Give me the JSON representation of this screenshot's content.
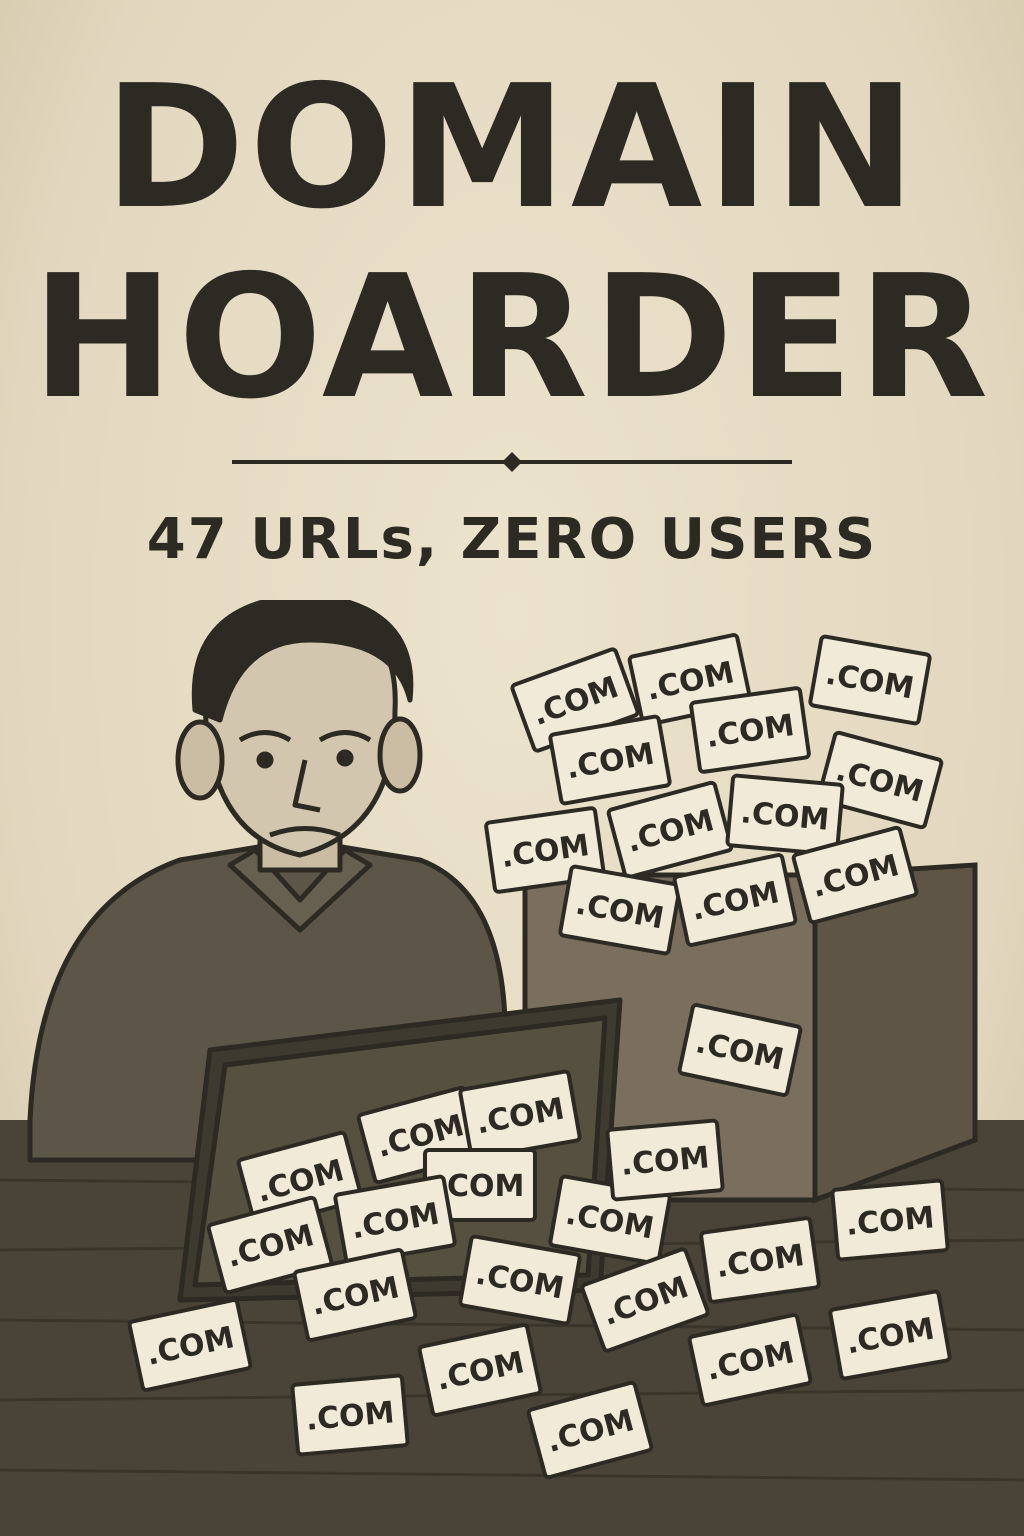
{
  "poster": {
    "title_line1": "DOMAIN",
    "title_line2": "HOARDER",
    "subtitle": "47 URLs, ZERO USERS",
    "card_label": ".COM"
  },
  "colors": {
    "paper": "#e6dcc6",
    "ink": "#2c2a22",
    "shirt": "#5c5548",
    "box": "#6e6454",
    "desk": "#4a4438",
    "card": "#f1ead9"
  }
}
